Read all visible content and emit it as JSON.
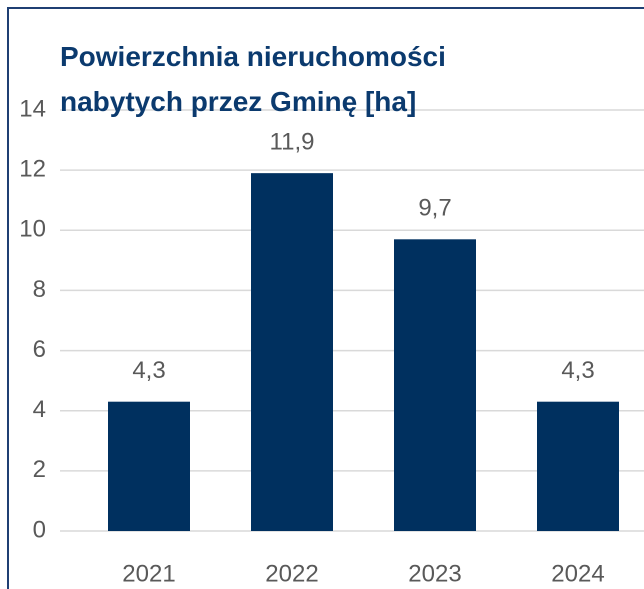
{
  "chart_data": {
    "type": "bar",
    "title": "Powierzchnia nieruchomości nabytych przez Gminę [ha]",
    "categories": [
      "2021",
      "2022",
      "2023",
      "2024"
    ],
    "values": [
      4.3,
      11.9,
      9.7,
      4.3
    ],
    "value_labels": [
      "4,3",
      "11,9",
      "9,7",
      "4,3"
    ],
    "color": "#00305f",
    "ylim": [
      0,
      14
    ],
    "yticks": [
      0,
      2,
      4,
      6,
      8,
      10,
      12,
      14
    ],
    "grid": true
  }
}
